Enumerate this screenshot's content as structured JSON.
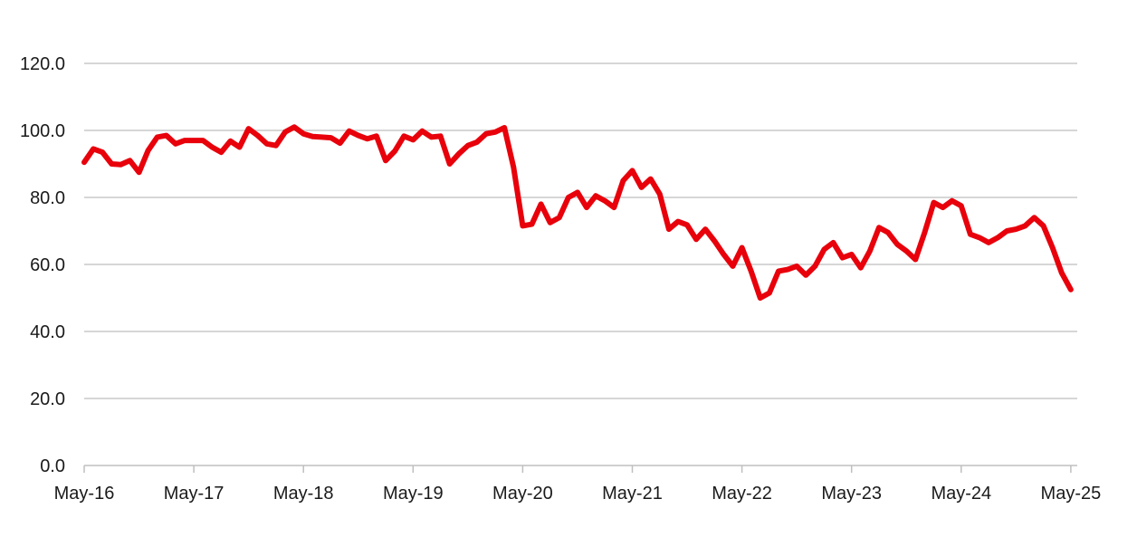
{
  "chart_data": {
    "type": "line",
    "title": "",
    "xlabel": "",
    "ylabel": "",
    "ylim": [
      0,
      120
    ],
    "y_ticks": [
      "0.0",
      "20.0",
      "40.0",
      "60.0",
      "80.0",
      "100.0",
      "120.0"
    ],
    "y_tick_values": [
      0,
      20,
      40,
      60,
      80,
      100,
      120
    ],
    "x_ticks": [
      "May-16",
      "May-17",
      "May-18",
      "May-19",
      "May-20",
      "May-21",
      "May-22",
      "May-23",
      "May-24",
      "May-25"
    ],
    "x_start": "2016-05",
    "x_step": "month",
    "grid": true,
    "legend": "none",
    "line_color": "#e8000b",
    "series": [
      {
        "values": [
          90.5,
          94.5,
          93.5,
          90,
          89.8,
          91,
          87.5,
          94,
          98,
          98.5,
          96,
          97,
          97,
          97,
          95,
          93.5,
          96.8,
          95,
          100.5,
          98.5,
          96,
          95.5,
          99.5,
          101,
          99,
          98.2,
          98,
          97.8,
          96.2,
          99.8,
          98.5,
          97.5,
          98.3,
          91,
          93.8,
          98.3,
          97.2,
          99.8,
          98,
          98.3,
          90,
          93,
          95.5,
          96.5,
          99,
          99.5,
          100.8,
          89,
          71.5,
          72,
          78,
          72.5,
          74,
          80,
          81.5,
          77,
          80.5,
          79,
          77,
          85,
          88,
          83,
          85.5,
          81,
          70.5,
          72.8,
          71.8,
          67.5,
          70.5,
          67,
          63,
          59.5,
          65,
          58,
          50,
          51.5,
          58,
          58.5,
          59.5,
          56.8,
          59.5,
          64.5,
          66.5,
          62,
          63,
          59,
          64,
          71,
          69.5,
          66,
          64,
          61.5,
          69.5,
          78.5,
          77,
          79,
          77.5,
          69,
          68,
          66.5,
          68,
          70,
          70.5,
          71.5,
          74,
          71.5,
          65,
          57.5,
          52.5
        ]
      }
    ]
  }
}
